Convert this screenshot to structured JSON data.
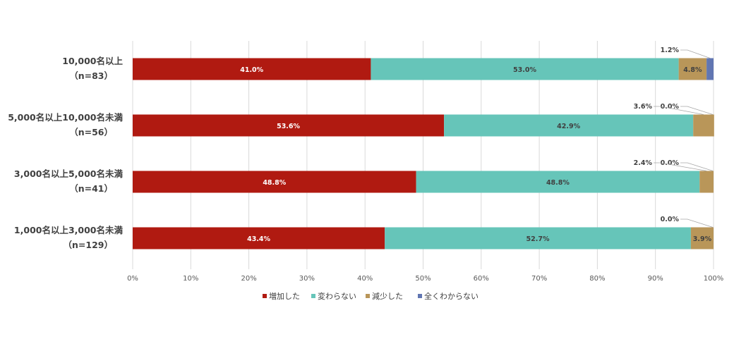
{
  "chart_data": {
    "type": "bar",
    "orientation": "horizontal",
    "stacked": true,
    "categories": [
      {
        "name": "10,000名以上",
        "n": "（n=83）"
      },
      {
        "name": "5,000名以上10,000名未満",
        "n": "（n=56）"
      },
      {
        "name": "3,000名以上5,000名未満",
        "n": "（n=41）"
      },
      {
        "name": "1,000名以上3,000名未満",
        "n": "（n=129）"
      }
    ],
    "series": [
      {
        "name": "増加した",
        "color": "#b01a11",
        "values": [
          41.0,
          53.6,
          48.8,
          43.4
        ],
        "labels": [
          "41.0%",
          "53.6%",
          "48.8%",
          "43.4%"
        ]
      },
      {
        "name": "変わらない",
        "color": "#66c5b9",
        "values": [
          53.0,
          42.9,
          48.8,
          52.7
        ],
        "labels": [
          "53.0%",
          "42.9%",
          "48.8%",
          "52.7%"
        ]
      },
      {
        "name": "減少した",
        "color": "#b99659",
        "values": [
          4.8,
          3.6,
          2.4,
          3.9
        ],
        "labels": [
          "4.8%",
          "3.6%",
          "2.4%",
          "3.9%"
        ]
      },
      {
        "name": "全くわからない",
        "color": "#6176b2",
        "values": [
          1.2,
          0.0,
          0.0,
          0.0
        ],
        "labels": [
          "1.2%",
          "0.0%",
          "0.0%",
          "0.0%"
        ]
      }
    ],
    "x_ticks": [
      "0%",
      "10%",
      "20%",
      "30%",
      "40%",
      "50%",
      "60%",
      "70%",
      "80%",
      "90%",
      "100%"
    ],
    "xlim": [
      0,
      100
    ],
    "grid": true,
    "legend": "bottom"
  }
}
